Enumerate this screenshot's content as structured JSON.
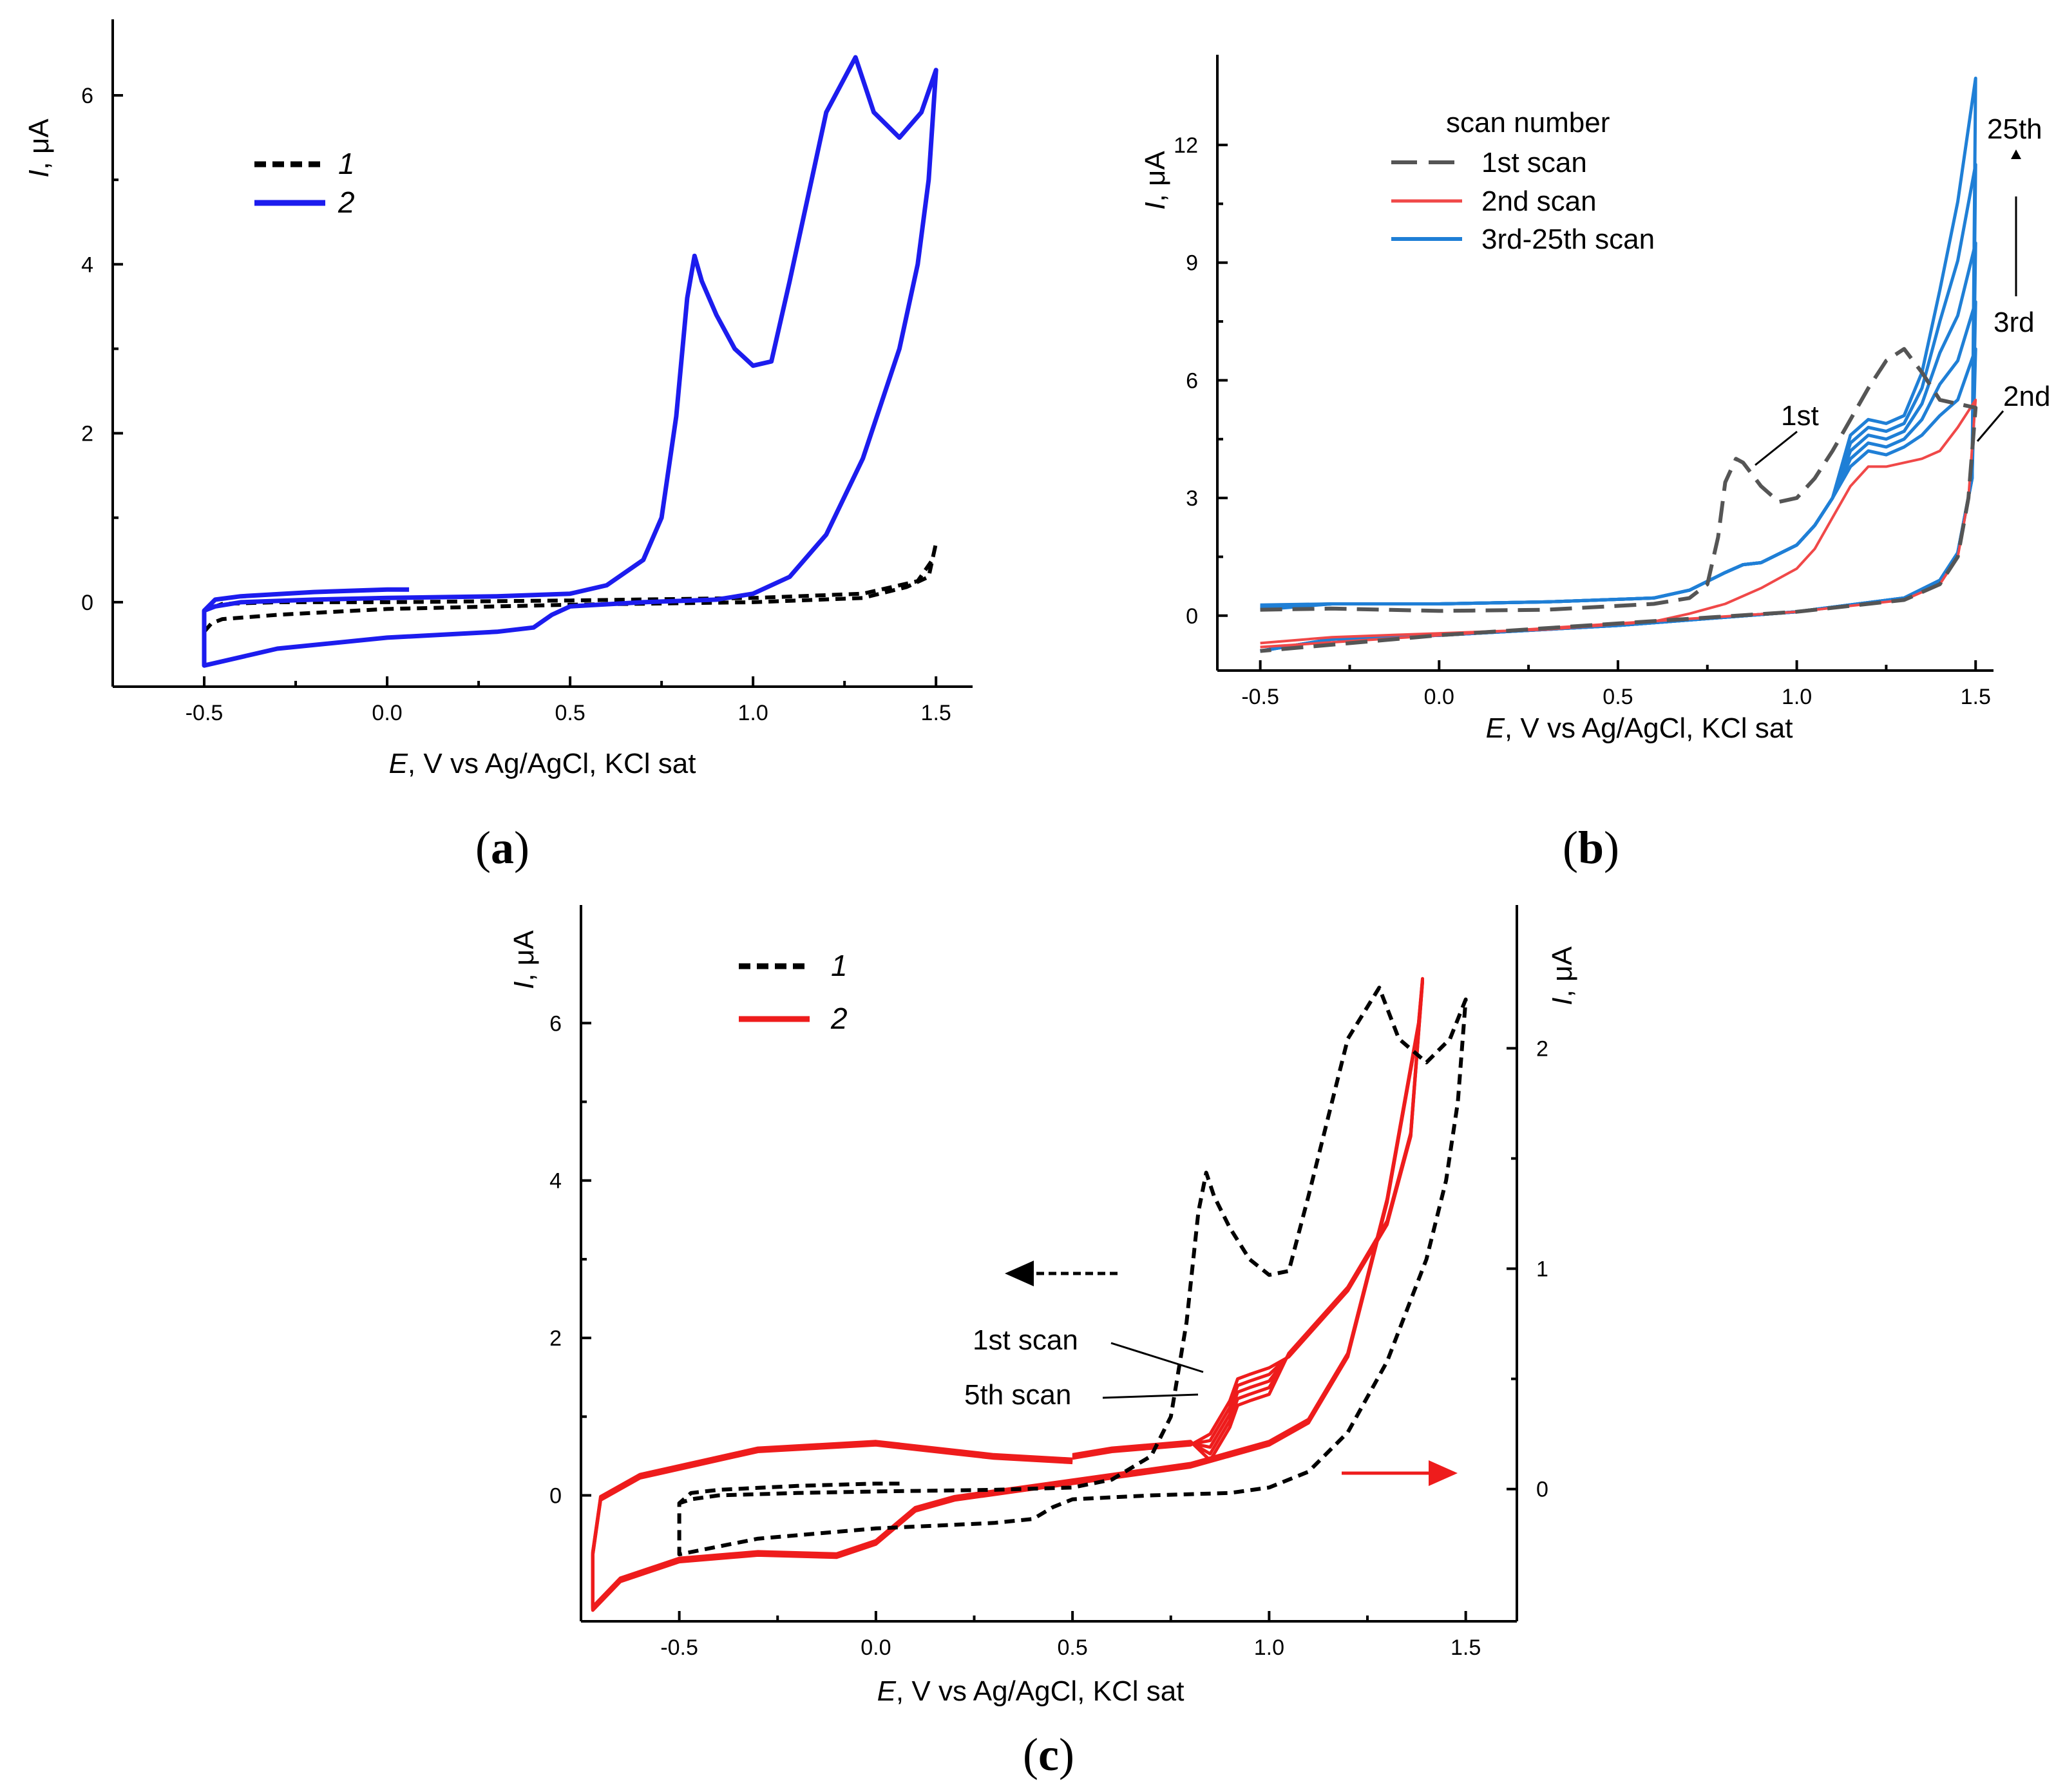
{
  "colors": {
    "black": "#000000",
    "blue": "#1c1cee",
    "red": "#ee1c1c",
    "lightblue": "#1f7fd6",
    "gray": "#555555",
    "lightred": "#f04848"
  },
  "panels": {
    "a": {
      "label_prefix": "(",
      "label_letter": "a",
      "label_suffix": ")",
      "ylabel_i": "I",
      "ylabel_rest": ", μA",
      "xlabel_e": "E",
      "xlabel_rest": ", V vs Ag/AgCl, KCl sat",
      "xticks": [
        "-0.5",
        "0.0",
        "0.5",
        "1.0",
        "1.5"
      ],
      "yticks": [
        "0",
        "2",
        "4",
        "6"
      ],
      "legend": [
        "1",
        "2"
      ]
    },
    "b": {
      "label_prefix": "(",
      "label_letter": "b",
      "label_suffix": ")",
      "ylabel_i": "I",
      "ylabel_rest": ", μA",
      "xlabel_e": "E",
      "xlabel_rest": ", V vs Ag/AgCl, KCl sat",
      "xticks": [
        "-0.5",
        "0.0",
        "0.5",
        "1.0",
        "1.5"
      ],
      "yticks": [
        "0",
        "3",
        "6",
        "9",
        "12"
      ],
      "legend_title": "scan number",
      "legend": [
        "1st scan",
        "2nd scan",
        "3rd-25th scan"
      ],
      "annotations": {
        "first": "1st",
        "second": "2nd",
        "third": "3rd",
        "twentyfifth": "25th"
      }
    },
    "c": {
      "label_prefix": "(",
      "label_letter": "c",
      "label_suffix": ")",
      "ylabel_i": "I",
      "ylabel_rest": ", μA",
      "ylabel2_i": "I",
      "ylabel2_rest": ", μA",
      "xlabel_e": "E",
      "xlabel_rest": ", V vs Ag/AgCl, KCl sat",
      "xticks": [
        "-0.5",
        "0.0",
        "0.5",
        "1.0",
        "1.5"
      ],
      "yticks": [
        "0",
        "2",
        "4",
        "6"
      ],
      "y2ticks": [
        "0",
        "1",
        "2"
      ],
      "legend": [
        "1",
        "2"
      ],
      "annotations": {
        "first_scan": "1st scan",
        "fifth_scan": "5th scan"
      }
    }
  },
  "chart_data": [
    {
      "id": "a",
      "type": "line",
      "xlabel": "E, V vs Ag/AgCl, KCl sat",
      "ylabel": "I, μA",
      "xlim": [
        -0.75,
        1.6
      ],
      "ylim": [
        -1.0,
        6.9
      ],
      "series": [
        {
          "name": "1",
          "style": "dashed",
          "color": "#000000",
          "x": [
            -0.5,
            -0.48,
            -0.45,
            -0.3,
            0.0,
            0.5,
            1.0,
            1.3,
            1.42,
            1.48,
            1.5,
            1.49,
            1.45,
            1.3,
            1.0,
            0.5,
            0.0,
            -0.3,
            -0.45,
            -0.5
          ],
          "y": [
            -0.35,
            -0.25,
            -0.2,
            -0.15,
            -0.08,
            -0.03,
            0.0,
            0.05,
            0.18,
            0.3,
            0.7,
            0.5,
            0.25,
            0.1,
            0.05,
            0.02,
            0.0,
            0.0,
            -0.02,
            -0.1
          ]
        },
        {
          "name": "2",
          "style": "solid",
          "color": "#1c1cee",
          "x": [
            0.06,
            0.0,
            -0.2,
            -0.4,
            -0.47,
            -0.5,
            -0.5,
            -0.45,
            -0.3,
            0.0,
            0.3,
            0.4,
            0.45,
            0.5,
            0.7,
            0.9,
            1.0,
            1.1,
            1.2,
            1.3,
            1.4,
            1.45,
            1.48,
            1.5,
            1.5,
            1.46,
            1.4,
            1.33,
            1.28,
            1.2,
            1.1,
            1.05,
            1.0,
            0.95,
            0.9,
            0.86,
            0.84,
            0.82,
            0.79,
            0.75,
            0.7,
            0.6,
            0.5,
            0.3,
            0.0,
            -0.2,
            -0.4,
            -0.47,
            -0.5
          ],
          "y": [
            0.15,
            0.15,
            0.12,
            0.07,
            0.03,
            -0.1,
            -0.75,
            -0.7,
            -0.55,
            -0.42,
            -0.35,
            -0.3,
            -0.15,
            -0.05,
            0.0,
            0.03,
            0.1,
            0.3,
            0.8,
            1.7,
            3.0,
            4.0,
            5.0,
            6.3,
            6.3,
            5.8,
            5.5,
            5.8,
            6.45,
            5.8,
            3.8,
            2.85,
            2.8,
            3.0,
            3.4,
            3.8,
            4.1,
            3.6,
            2.2,
            1.0,
            0.5,
            0.2,
            0.1,
            0.07,
            0.05,
            0.03,
            0.0,
            -0.05,
            -0.1
          ]
        }
      ],
      "legend_position": "top-left"
    },
    {
      "id": "b",
      "type": "line",
      "xlabel": "E, V vs Ag/AgCl, KCl sat",
      "ylabel": "I, μA",
      "xlim": [
        -0.62,
        1.55
      ],
      "ylim": [
        -1.4,
        14.3
      ],
      "series": [
        {
          "name": "1st scan",
          "style": "dashed",
          "color": "#555555",
          "x": [
            -0.5,
            -0.3,
            0.0,
            0.3,
            0.6,
            0.7,
            0.75,
            0.78,
            0.8,
            0.83,
            0.85,
            0.9,
            0.95,
            1.0,
            1.05,
            1.1,
            1.15,
            1.2,
            1.25,
            1.3,
            1.35,
            1.4,
            1.45,
            1.5,
            1.48,
            1.45,
            1.4,
            1.3,
            1.0,
            0.5,
            0.0,
            -0.5
          ],
          "y": [
            0.15,
            0.18,
            0.12,
            0.15,
            0.3,
            0.45,
            0.8,
            2.0,
            3.4,
            4.0,
            3.9,
            3.3,
            2.9,
            3.0,
            3.5,
            4.2,
            5.0,
            5.8,
            6.5,
            6.8,
            6.2,
            5.5,
            5.4,
            5.3,
            3.0,
            1.5,
            0.8,
            0.4,
            0.1,
            -0.2,
            -0.5,
            -0.9
          ]
        },
        {
          "name": "2nd scan",
          "style": "solid",
          "color": "#f04848",
          "x": [
            -0.5,
            -0.3,
            0.0,
            0.3,
            0.6,
            0.7,
            0.8,
            0.9,
            1.0,
            1.05,
            1.1,
            1.15,
            1.2,
            1.25,
            1.3,
            1.35,
            1.4,
            1.45,
            1.5,
            1.48,
            1.45,
            1.4,
            1.3,
            1.0,
            0.5,
            0.0,
            -0.5
          ],
          "y": [
            -0.7,
            -0.55,
            -0.45,
            -0.35,
            -0.15,
            0.05,
            0.3,
            0.7,
            1.2,
            1.7,
            2.5,
            3.3,
            3.8,
            3.8,
            3.9,
            4.0,
            4.2,
            4.8,
            5.5,
            3.0,
            1.5,
            0.8,
            0.4,
            0.1,
            -0.2,
            -0.5,
            -0.8
          ]
        },
        {
          "name": "3rd-25th scan",
          "style": "solid",
          "color": "#1f7fd6",
          "curves": [
            {
              "peak": 4.2,
              "max": 6.8
            },
            {
              "peak": 4.4,
              "max": 8.0
            },
            {
              "peak": 4.6,
              "max": 9.5
            },
            {
              "peak": 4.8,
              "max": 11.5
            },
            {
              "peak": 5.0,
              "max": 13.7
            }
          ]
        }
      ],
      "legend_position": "top-left"
    },
    {
      "id": "c",
      "type": "line",
      "xlabel": "E, V vs Ag/AgCl, KCl sat",
      "ylabel": "I, μA",
      "ylabel_right": "I, μA",
      "xlim": [
        -0.75,
        1.63
      ],
      "ylim": [
        -1.6,
        7.5
      ],
      "ylim_right": [
        -0.6,
        2.65
      ],
      "series": [
        {
          "name": "1",
          "style": "dashed",
          "color": "#000000",
          "axis": "left",
          "x": [
            0.06,
            0.0,
            -0.2,
            -0.4,
            -0.47,
            -0.5,
            -0.5,
            -0.45,
            -0.3,
            0.0,
            0.3,
            0.4,
            0.45,
            0.5,
            0.7,
            0.9,
            1.0,
            1.1,
            1.2,
            1.3,
            1.4,
            1.45,
            1.48,
            1.5,
            1.5,
            1.46,
            1.4,
            1.33,
            1.28,
            1.2,
            1.1,
            1.05,
            1.0,
            0.95,
            0.9,
            0.86,
            0.84,
            0.82,
            0.79,
            0.75,
            0.7,
            0.6,
            0.5,
            0.3,
            0.0,
            -0.2,
            -0.4,
            -0.47,
            -0.5
          ],
          "y": [
            0.15,
            0.15,
            0.12,
            0.07,
            0.03,
            -0.1,
            -0.75,
            -0.7,
            -0.55,
            -0.42,
            -0.35,
            -0.3,
            -0.15,
            -0.05,
            0.0,
            0.03,
            0.1,
            0.3,
            0.8,
            1.7,
            3.0,
            4.0,
            5.0,
            6.3,
            6.3,
            5.8,
            5.5,
            5.8,
            6.45,
            5.8,
            3.8,
            2.85,
            2.8,
            3.0,
            3.4,
            3.8,
            4.1,
            3.6,
            2.2,
            1.0,
            0.5,
            0.2,
            0.1,
            0.07,
            0.05,
            0.03,
            0.0,
            -0.05,
            -0.1
          ]
        },
        {
          "name": "2",
          "style": "solid",
          "color": "#ee1c1c",
          "axis": "right",
          "scans": 5,
          "x": [
            0.5,
            0.3,
            0.0,
            -0.3,
            -0.6,
            -0.7,
            -0.72,
            -0.72,
            -0.65,
            -0.5,
            -0.3,
            -0.1,
            0.0,
            0.1,
            0.2,
            0.4,
            0.6,
            0.8,
            1.0,
            1.1,
            1.2,
            1.3,
            1.38,
            1.39,
            1.39,
            1.36,
            1.3,
            1.2,
            1.05,
            1.0,
            0.95,
            0.92,
            0.9,
            0.85,
            0.8,
            0.6,
            0.5
          ],
          "y": [
            0.12,
            0.14,
            0.2,
            0.17,
            0.05,
            -0.05,
            -0.3,
            -0.55,
            -0.42,
            -0.33,
            -0.3,
            -0.31,
            -0.25,
            -0.1,
            -0.05,
            0.0,
            0.05,
            0.1,
            0.2,
            0.3,
            0.6,
            1.3,
            2.1,
            2.3,
            2.3,
            1.6,
            1.2,
            0.9,
            0.6,
            0.55,
            0.52,
            0.5,
            0.4,
            0.25,
            0.2,
            0.17,
            0.14
          ]
        }
      ],
      "legend_position": "top-left"
    }
  ]
}
